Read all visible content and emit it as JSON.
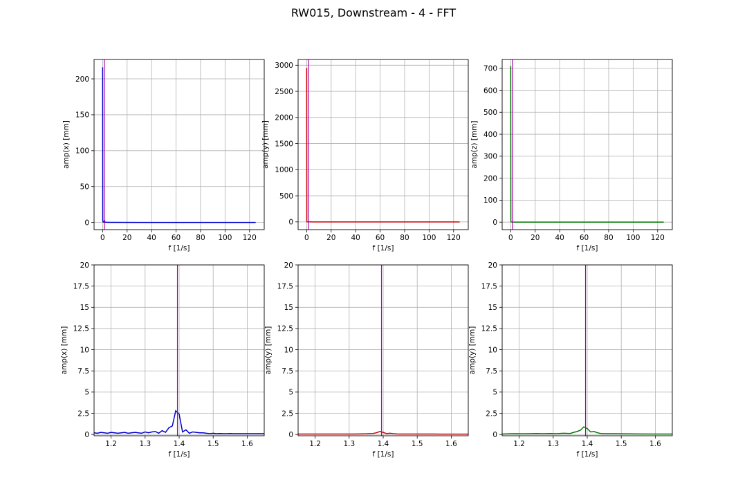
{
  "figure": {
    "title": "RW015, Downstream - 4 - FFT"
  },
  "colors": {
    "x": "#0000cc",
    "y": "#cc0000",
    "z": "#007700",
    "marker": "#aa00aa",
    "grid": "#b0b0b0"
  },
  "chart_data": [
    {
      "type": "line",
      "xlabel": "f [1/s]",
      "ylabel": "amp(x) [mm]",
      "xlim": [
        -7,
        132
      ],
      "ylim": [
        -10,
        227
      ],
      "xticks": [
        0,
        20,
        40,
        60,
        80,
        100,
        120
      ],
      "yticks": [
        0,
        50,
        100,
        150,
        200
      ],
      "grid": true,
      "marker_x": 1.39,
      "series": [
        {
          "color": "#0000cc",
          "x": [
            0,
            0.1,
            0.25,
            0.5,
            1.0,
            1.39,
            2,
            5,
            10,
            30,
            60,
            90,
            125
          ],
          "y": [
            216,
            3,
            1,
            0.6,
            0.3,
            2.8,
            0.3,
            0.1,
            0.1,
            0.05,
            0.05,
            0.05,
            0.05
          ]
        }
      ]
    },
    {
      "type": "line",
      "xlabel": "f [1/s]",
      "ylabel": "amp(y) [mm]",
      "xlim": [
        -7,
        132
      ],
      "ylim": [
        -148,
        3110
      ],
      "xticks": [
        0,
        20,
        40,
        60,
        80,
        100,
        120
      ],
      "yticks": [
        0,
        500,
        1000,
        1500,
        2000,
        2500,
        3000
      ],
      "grid": true,
      "marker_x": 1.39,
      "series": [
        {
          "color": "#cc0000",
          "x": [
            0,
            0.1,
            0.25,
            0.5,
            1.0,
            2,
            5,
            10,
            30,
            60,
            90,
            125
          ],
          "y": [
            2950,
            10,
            3,
            1,
            0.3,
            0.2,
            0.1,
            0.1,
            0.05,
            0.05,
            0.05,
            0.05
          ]
        }
      ]
    },
    {
      "type": "line",
      "xlabel": "f [1/s]",
      "ylabel": "amp(z) [mm]",
      "xlim": [
        -7,
        132
      ],
      "ylim": [
        -34,
        740
      ],
      "xticks": [
        0,
        20,
        40,
        60,
        80,
        100,
        120
      ],
      "yticks": [
        0,
        100,
        200,
        300,
        400,
        500,
        600,
        700
      ],
      "grid": true,
      "marker_x": 1.39,
      "series": [
        {
          "color": "#007700",
          "x": [
            0,
            0.1,
            0.25,
            0.5,
            1.0,
            2,
            5,
            10,
            30,
            60,
            90,
            125
          ],
          "y": [
            710,
            5,
            2,
            1,
            0.5,
            0.3,
            0.1,
            0.1,
            0.05,
            0.05,
            0.05,
            0.05
          ]
        }
      ]
    },
    {
      "type": "line",
      "xlabel": "f [1/s]",
      "ylabel": "amp(x) [mm]",
      "xlim": [
        1.15,
        1.65
      ],
      "ylim": [
        -0.15,
        20
      ],
      "xticks": [
        1.2,
        1.3,
        1.4,
        1.5,
        1.6
      ],
      "yticks": [
        0,
        2.5,
        5,
        7.5,
        10,
        12.5,
        15,
        17.5,
        20
      ],
      "grid": true,
      "marker_x": 1.395,
      "series": [
        {
          "color": "#0000cc",
          "x": [
            1.15,
            1.16,
            1.17,
            1.18,
            1.19,
            1.2,
            1.21,
            1.22,
            1.23,
            1.24,
            1.25,
            1.26,
            1.27,
            1.28,
            1.29,
            1.3,
            1.31,
            1.32,
            1.33,
            1.34,
            1.35,
            1.36,
            1.37,
            1.38,
            1.39,
            1.4,
            1.41,
            1.42,
            1.43,
            1.44,
            1.45,
            1.46,
            1.47,
            1.48,
            1.49,
            1.5,
            1.51,
            1.52,
            1.53,
            1.54,
            1.55,
            1.56,
            1.57,
            1.58,
            1.59,
            1.6,
            1.61,
            1.62,
            1.63,
            1.64,
            1.65
          ],
          "y": [
            0.2,
            0.15,
            0.25,
            0.2,
            0.15,
            0.25,
            0.2,
            0.15,
            0.2,
            0.25,
            0.15,
            0.2,
            0.25,
            0.2,
            0.15,
            0.3,
            0.2,
            0.3,
            0.35,
            0.15,
            0.45,
            0.25,
            0.8,
            1.0,
            2.8,
            2.4,
            0.3,
            0.55,
            0.15,
            0.3,
            0.25,
            0.2,
            0.2,
            0.15,
            0.1,
            0.15,
            0.1,
            0.12,
            0.1,
            0.1,
            0.12,
            0.1,
            0.1,
            0.1,
            0.1,
            0.1,
            0.1,
            0.1,
            0.1,
            0.1,
            0.1
          ]
        }
      ]
    },
    {
      "type": "line",
      "xlabel": "f [1/s]",
      "ylabel": "amp(y) [mm]",
      "xlim": [
        1.15,
        1.65
      ],
      "ylim": [
        -0.15,
        20
      ],
      "xticks": [
        1.2,
        1.3,
        1.4,
        1.5,
        1.6
      ],
      "yticks": [
        0,
        2.5,
        5,
        7.5,
        10,
        12.5,
        15,
        17.5,
        20
      ],
      "grid": true,
      "marker_x": 1.395,
      "series": [
        {
          "color": "#cc0000",
          "x": [
            1.15,
            1.2,
            1.25,
            1.3,
            1.33,
            1.35,
            1.37,
            1.38,
            1.39,
            1.4,
            1.41,
            1.42,
            1.43,
            1.44,
            1.45,
            1.5,
            1.55,
            1.6,
            1.65
          ],
          "y": [
            0.05,
            0.05,
            0.05,
            0.05,
            0.06,
            0.08,
            0.12,
            0.2,
            0.35,
            0.25,
            0.1,
            0.15,
            0.1,
            0.06,
            0.05,
            0.05,
            0.05,
            0.04,
            0.04
          ]
        }
      ]
    },
    {
      "type": "line",
      "xlabel": "f [1/s]",
      "ylabel": "amp(y) [mm]",
      "xlim": [
        1.15,
        1.65
      ],
      "ylim": [
        -0.15,
        20
      ],
      "xticks": [
        1.2,
        1.3,
        1.4,
        1.5,
        1.6
      ],
      "yticks": [
        0,
        2.5,
        5,
        7.5,
        10,
        12.5,
        15,
        17.5,
        20
      ],
      "grid": true,
      "marker_x": 1.395,
      "series": [
        {
          "color": "#007700",
          "x": [
            1.15,
            1.17,
            1.19,
            1.21,
            1.23,
            1.25,
            1.27,
            1.29,
            1.31,
            1.33,
            1.35,
            1.36,
            1.37,
            1.38,
            1.39,
            1.4,
            1.41,
            1.42,
            1.43,
            1.44,
            1.45,
            1.47,
            1.5,
            1.55,
            1.6,
            1.65
          ],
          "y": [
            0.05,
            0.08,
            0.1,
            0.08,
            0.1,
            0.12,
            0.1,
            0.12,
            0.1,
            0.15,
            0.12,
            0.25,
            0.35,
            0.5,
            0.9,
            0.7,
            0.3,
            0.35,
            0.2,
            0.12,
            0.1,
            0.1,
            0.08,
            0.06,
            0.05,
            0.05
          ]
        }
      ]
    }
  ]
}
